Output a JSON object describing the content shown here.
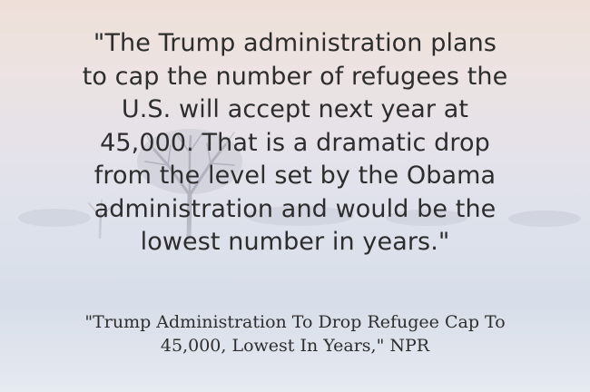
{
  "quote": {
    "text": "\"The Trump administration plans\nto cap the number of refugees the\nU.S. will accept next year at\n45,000. That is a dramatic drop\nfrom the level set by the Obama\nadministration and would be the\nlowest number in years.\""
  },
  "attribution": {
    "text": "\"Trump Administration To Drop Refugee Cap To\n45,000, Lowest In Years,\" NPR"
  },
  "colors": {
    "text": "#2d2d2d",
    "background_top": "#eee0d8",
    "background_bottom": "#e9ecf2"
  }
}
